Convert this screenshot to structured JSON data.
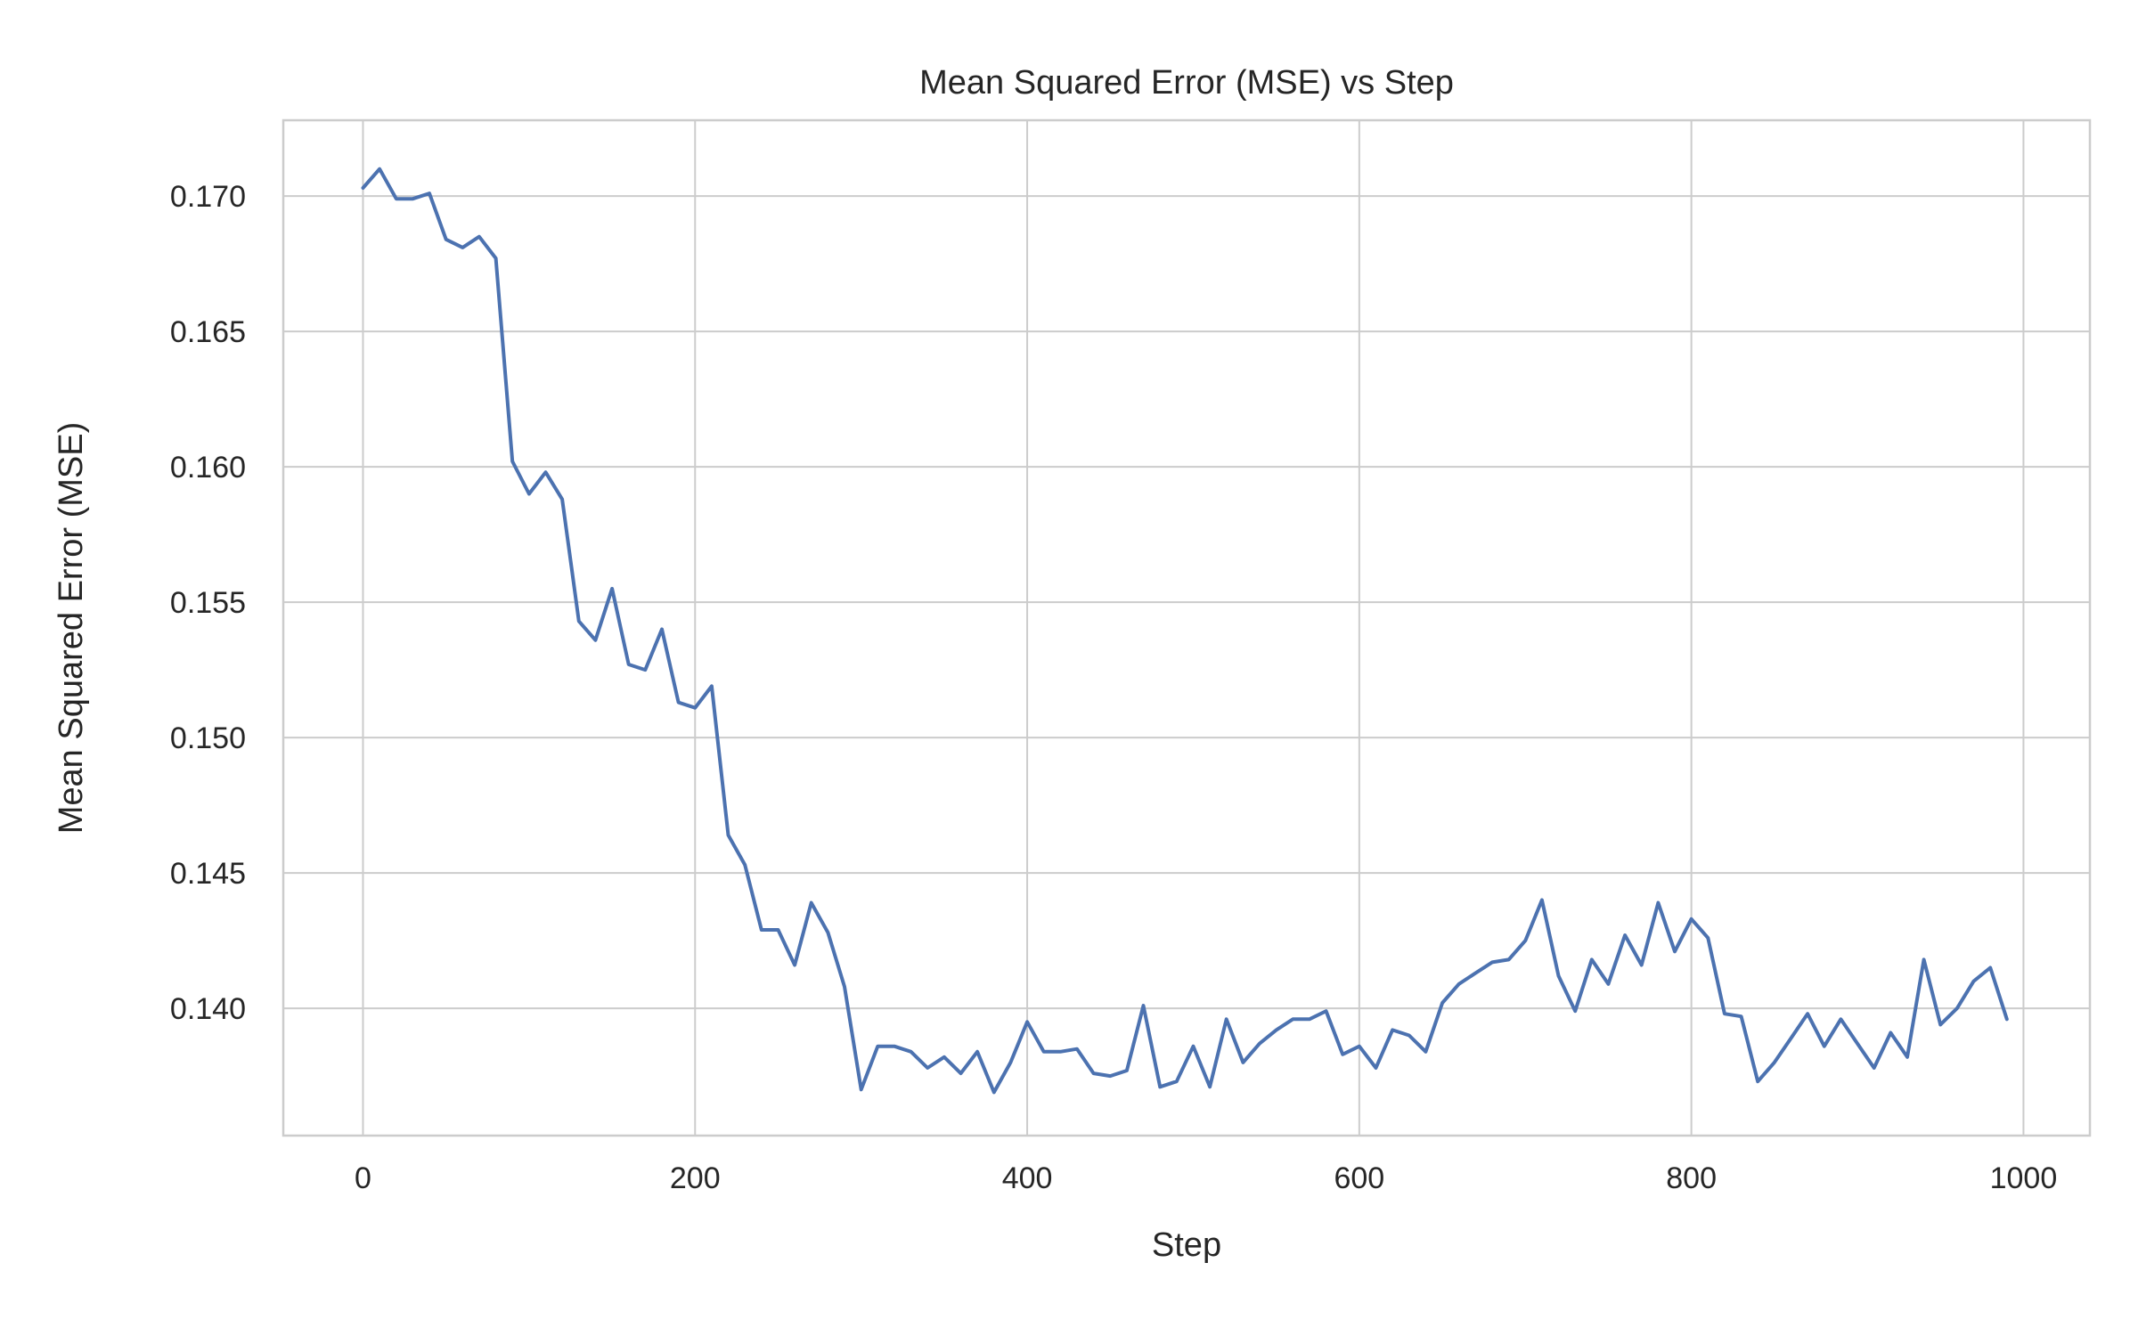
{
  "chart_data": {
    "type": "line",
    "title": "Mean Squared Error (MSE) vs Step",
    "xlabel": "Step",
    "ylabel": "Mean Squared Error (MSE)",
    "xlim": [
      -48,
      1040
    ],
    "ylim": [
      0.1353,
      0.1728
    ],
    "xticks": [
      0,
      200,
      400,
      600,
      800,
      1000
    ],
    "xtick_labels": [
      "0",
      "200",
      "400",
      "600",
      "800",
      "1000"
    ],
    "yticks": [
      0.14,
      0.145,
      0.15,
      0.155,
      0.16,
      0.165,
      0.17
    ],
    "ytick_labels": [
      "0.140",
      "0.145",
      "0.150",
      "0.155",
      "0.160",
      "0.165",
      "0.170"
    ],
    "grid": true,
    "colors": {
      "series": "#4c72b0",
      "grid": "#cccccc",
      "text": "#262626"
    },
    "series": [
      {
        "x": [
          0,
          10,
          20,
          30,
          40,
          50,
          60,
          70,
          80,
          90,
          100,
          110,
          120,
          130,
          140,
          150,
          160,
          170,
          180,
          190,
          200,
          210,
          220,
          230,
          240,
          250,
          260,
          270,
          280,
          290,
          300,
          310,
          320,
          330,
          340,
          350,
          360,
          370,
          380,
          390,
          400,
          410,
          420,
          430,
          440,
          450,
          460,
          470,
          480,
          490,
          500,
          510,
          520,
          530,
          540,
          550,
          560,
          570,
          580,
          590,
          600,
          610,
          620,
          630,
          640,
          650,
          660,
          670,
          680,
          690,
          700,
          710,
          720,
          730,
          740,
          750,
          760,
          770,
          780,
          790,
          800,
          810,
          820,
          830,
          840,
          850,
          860,
          870,
          880,
          890,
          900,
          910,
          920,
          930,
          940,
          950,
          960,
          970,
          980,
          990
        ],
        "values": [
          0.1703,
          0.171,
          0.1699,
          0.1699,
          0.1701,
          0.1684,
          0.1681,
          0.1685,
          0.1677,
          0.1602,
          0.159,
          0.1598,
          0.1588,
          0.1543,
          0.1536,
          0.1555,
          0.1527,
          0.1525,
          0.154,
          0.1513,
          0.1511,
          0.1519,
          0.1464,
          0.1453,
          0.1429,
          0.1429,
          0.1416,
          0.1439,
          0.1428,
          0.1408,
          0.137,
          0.1386,
          0.1386,
          0.1384,
          0.1378,
          0.1382,
          0.1376,
          0.1384,
          0.1369,
          0.138,
          0.1395,
          0.1384,
          0.1384,
          0.1385,
          0.1376,
          0.1375,
          0.1377,
          0.1401,
          0.1371,
          0.1373,
          0.1386,
          0.1371,
          0.1396,
          0.138,
          0.1387,
          0.1392,
          0.1396,
          0.1396,
          0.1399,
          0.1383,
          0.1386,
          0.1378,
          0.1392,
          0.139,
          0.1384,
          0.1402,
          0.1409,
          0.1413,
          0.1417,
          0.1418,
          0.1425,
          0.144,
          0.1412,
          0.1399,
          0.1418,
          0.1409,
          0.1427,
          0.1416,
          0.1439,
          0.1421,
          0.1433,
          0.1426,
          0.1398,
          0.1397,
          0.1373,
          0.138,
          0.1389,
          0.1398,
          0.1386,
          0.1396,
          0.1387,
          0.1378,
          0.1391,
          0.1382,
          0.1418,
          0.1394,
          0.14,
          0.141,
          0.1415,
          0.1396
        ]
      }
    ]
  }
}
